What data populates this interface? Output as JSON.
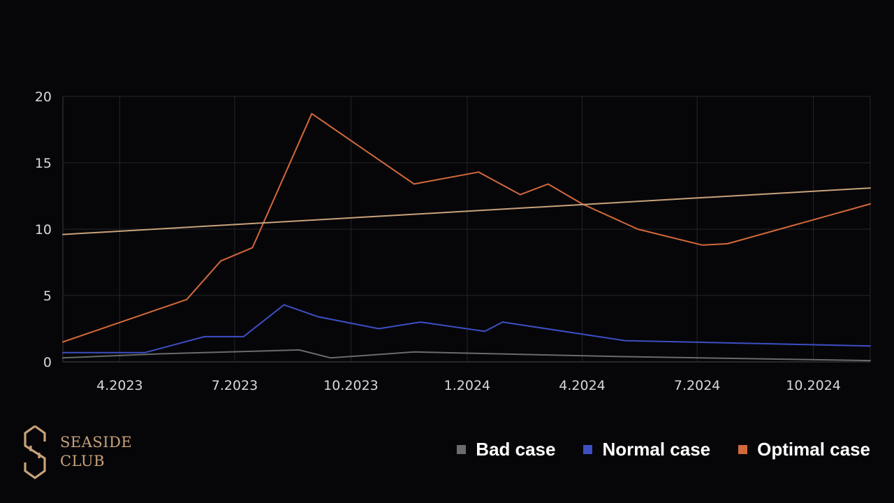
{
  "brand": {
    "logo_icon": "seaside-club-s-monogram",
    "name_line1": "SEASIDE",
    "name_line2": "CLUB",
    "color": "#c9a27a"
  },
  "legend": [
    {
      "label": "Bad case",
      "color": "#6b6b6b"
    },
    {
      "label": "Normal case",
      "color": "#3d4fc4"
    },
    {
      "label": "Optimal case",
      "color": "#d3693a"
    }
  ],
  "chart_data": {
    "type": "line",
    "title": "",
    "xlabel": "",
    "ylabel": "",
    "xlim": [
      "2023-02-15",
      "2024-11-15"
    ],
    "ylim": [
      0,
      20
    ],
    "yticks": [
      0,
      5,
      10,
      15,
      20
    ],
    "xticks": [
      {
        "date": "2023-04-01",
        "label": "4.2023"
      },
      {
        "date": "2023-07-01",
        "label": "7.2023"
      },
      {
        "date": "2023-10-01",
        "label": "10.2023"
      },
      {
        "date": "2024-01-01",
        "label": "1.2024"
      },
      {
        "date": "2024-04-01",
        "label": "4.2024"
      },
      {
        "date": "2024-07-01",
        "label": "7.2024"
      },
      {
        "date": "2024-10-01",
        "label": "10.2024"
      }
    ],
    "grid": true,
    "legend_position": "bottom-right",
    "series": [
      {
        "name": "Bad case",
        "color": "#6b6b6b",
        "points": [
          [
            "2023-02-15",
            0.3
          ],
          [
            "2023-05-01",
            0.6
          ],
          [
            "2023-08-21",
            0.9
          ],
          [
            "2023-09-15",
            0.3
          ],
          [
            "2023-11-20",
            0.75
          ],
          [
            "2024-05-01",
            0.4
          ],
          [
            "2024-11-15",
            0.1
          ]
        ]
      },
      {
        "name": "Normal case",
        "color": "#3d4fc4",
        "points": [
          [
            "2023-02-15",
            0.7
          ],
          [
            "2023-04-21",
            0.7
          ],
          [
            "2023-06-07",
            1.9
          ],
          [
            "2023-07-08",
            1.9
          ],
          [
            "2023-08-09",
            4.3
          ],
          [
            "2023-09-05",
            3.4
          ],
          [
            "2023-10-23",
            2.5
          ],
          [
            "2023-11-25",
            3.0
          ],
          [
            "2024-01-15",
            2.3
          ],
          [
            "2024-01-29",
            3.0
          ],
          [
            "2024-05-05",
            1.6
          ],
          [
            "2024-11-15",
            1.2
          ]
        ]
      },
      {
        "name": "Optimal case",
        "color": "#d3693a",
        "points": [
          [
            "2023-02-15",
            1.5
          ],
          [
            "2023-05-24",
            4.7
          ],
          [
            "2023-06-20",
            7.6
          ],
          [
            "2023-07-15",
            8.6
          ],
          [
            "2023-08-31",
            18.7
          ],
          [
            "2023-11-20",
            13.4
          ],
          [
            "2024-01-10",
            14.3
          ],
          [
            "2024-02-12",
            12.6
          ],
          [
            "2024-03-05",
            13.4
          ],
          [
            "2024-04-01",
            11.9
          ],
          [
            "2024-05-15",
            10.0
          ],
          [
            "2024-07-05",
            8.8
          ],
          [
            "2024-07-25",
            8.9
          ],
          [
            "2024-11-15",
            11.9
          ]
        ]
      },
      {
        "name": "",
        "color": "#c9a27a",
        "points": [
          [
            "2023-02-15",
            9.6
          ],
          [
            "2024-11-15",
            13.1
          ]
        ]
      }
    ]
  }
}
